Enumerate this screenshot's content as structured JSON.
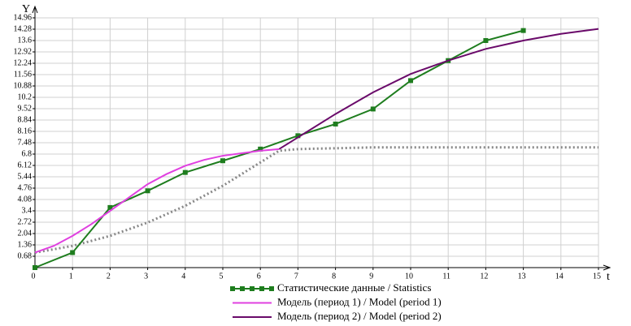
{
  "chart_data": {
    "type": "line",
    "xlabel": "t",
    "ylabel": "Y",
    "xlim": [
      0,
      15
    ],
    "ylim": [
      0,
      14.96
    ],
    "xticks": [
      0,
      1,
      2,
      3,
      4,
      5,
      6,
      7,
      8,
      9,
      10,
      11,
      12,
      13,
      14,
      15
    ],
    "yticks": [
      0.68,
      1.36,
      2.04,
      2.72,
      3.4,
      4.08,
      4.76,
      5.44,
      6.12,
      6.8,
      7.48,
      8.16,
      8.84,
      9.52,
      10.2,
      10.88,
      11.56,
      12.24,
      12.92,
      13.6,
      14.28,
      14.96
    ],
    "grid": true,
    "series": [
      {
        "name": "Статистические данные / Statistics",
        "color": "#1e7d1e",
        "markers": true,
        "x": [
          0,
          1,
          2,
          3,
          4,
          5,
          6,
          7,
          8,
          9,
          10,
          11,
          12,
          13
        ],
        "values": [
          0,
          0.9,
          3.6,
          4.6,
          5.7,
          6.4,
          7.1,
          7.9,
          8.6,
          9.5,
          11.2,
          12.4,
          13.6,
          14.2
        ]
      },
      {
        "name": "Модель (период 1) / Model (period 1)",
        "color": "#e040e0",
        "x": [
          0,
          0.5,
          1,
          1.5,
          2,
          2.5,
          3,
          3.5,
          4,
          4.5,
          5,
          5.5,
          6,
          6.5
        ],
        "values": [
          0.9,
          1.3,
          1.9,
          2.6,
          3.4,
          4.2,
          5.0,
          5.6,
          6.1,
          6.45,
          6.7,
          6.85,
          7.0,
          7.1
        ]
      },
      {
        "name": "Модель (период 2) / Model (period 2)",
        "color": "#6a0a6a",
        "x": [
          6.5,
          7,
          8,
          9,
          10,
          11,
          12,
          13,
          14,
          15
        ],
        "values": [
          7.1,
          7.8,
          9.2,
          10.5,
          11.6,
          12.4,
          13.1,
          13.6,
          14.0,
          14.3
        ]
      },
      {
        "color": "#888888",
        "dashed": true,
        "x": [
          0,
          1,
          2,
          3,
          4,
          5,
          6,
          6.5,
          7,
          8,
          9,
          10,
          11,
          12,
          13,
          14,
          15
        ],
        "values": [
          0.9,
          1.3,
          1.9,
          2.7,
          3.7,
          4.9,
          6.3,
          7.0,
          7.1,
          7.15,
          7.2,
          7.2,
          7.2,
          7.2,
          7.2,
          7.2,
          7.2
        ]
      }
    ]
  }
}
